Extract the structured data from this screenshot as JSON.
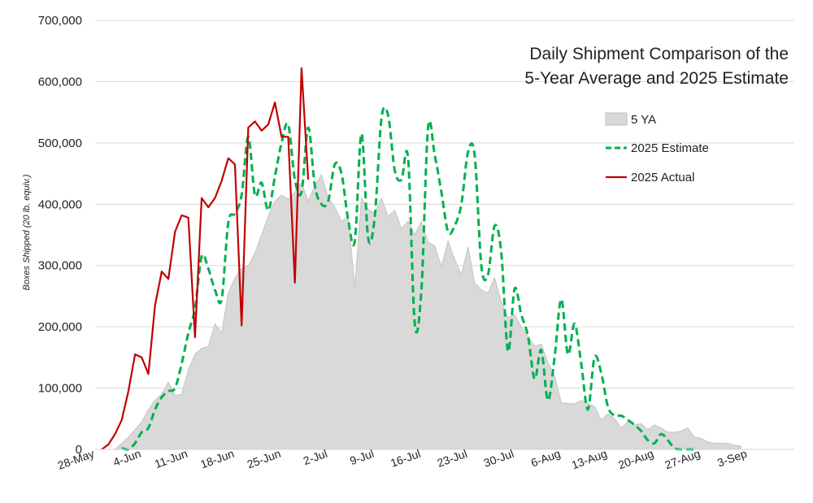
{
  "chart_data": {
    "type": "area",
    "title": [
      "Daily Shipment Comparison of the",
      "5-Year Average and 2025 Estimate"
    ],
    "ylabel": "Boxes Shipped (20 lb. equiv.)",
    "xlabel": "",
    "ylim": [
      0,
      700000
    ],
    "y_ticks": [
      0,
      100000,
      200000,
      300000,
      400000,
      500000,
      600000,
      700000
    ],
    "y_tick_labels": [
      "0",
      "100,000",
      "200,000",
      "300,000",
      "400,000",
      "500,000",
      "600,000",
      "700,000"
    ],
    "x_range": [
      "2025-05-28",
      "2025-09-10"
    ],
    "x_tick_labels": [
      "28-May",
      "4-Jun",
      "11-Jun",
      "18-Jun",
      "25-Jun",
      "2-Jul",
      "9-Jul",
      "16-Jul",
      "23-Jul",
      "30-Jul",
      "6-Aug",
      "13-Aug",
      "20-Aug",
      "27-Aug",
      "3-Sep"
    ],
    "grid": "horizontal",
    "legend_position": "top-right",
    "series": [
      {
        "name": "5 YA",
        "style": "area",
        "color": "#d9d9d9",
        "points": [
          [
            "2025-05-31",
            0
          ],
          [
            "2025-06-01",
            10000
          ],
          [
            "2025-06-02",
            20000
          ],
          [
            "2025-06-03",
            32000
          ],
          [
            "2025-06-04",
            45000
          ],
          [
            "2025-06-05",
            65000
          ],
          [
            "2025-06-06",
            80000
          ],
          [
            "2025-06-07",
            90000
          ],
          [
            "2025-06-08",
            110000
          ],
          [
            "2025-06-09",
            88000
          ],
          [
            "2025-06-10",
            90000
          ],
          [
            "2025-06-11",
            130000
          ],
          [
            "2025-06-12",
            155000
          ],
          [
            "2025-06-13",
            165000
          ],
          [
            "2025-06-14",
            168000
          ],
          [
            "2025-06-15",
            205000
          ],
          [
            "2025-06-16",
            190000
          ],
          [
            "2025-06-17",
            255000
          ],
          [
            "2025-06-18",
            280000
          ],
          [
            "2025-06-19",
            295000
          ],
          [
            "2025-06-20",
            300000
          ],
          [
            "2025-06-21",
            320000
          ],
          [
            "2025-06-22",
            350000
          ],
          [
            "2025-06-23",
            380000
          ],
          [
            "2025-06-24",
            405000
          ],
          [
            "2025-06-25",
            415000
          ],
          [
            "2025-06-26",
            408000
          ],
          [
            "2025-06-27",
            420000
          ],
          [
            "2025-06-28",
            435000
          ],
          [
            "2025-06-29",
            405000
          ],
          [
            "2025-06-30",
            430000
          ],
          [
            "2025-07-01",
            448000
          ],
          [
            "2025-07-02",
            410000
          ],
          [
            "2025-07-03",
            395000
          ],
          [
            "2025-07-04",
            372000
          ],
          [
            "2025-07-05",
            380000
          ],
          [
            "2025-07-06",
            265000
          ],
          [
            "2025-07-07",
            410000
          ],
          [
            "2025-07-08",
            392000
          ],
          [
            "2025-07-09",
            385000
          ],
          [
            "2025-07-10",
            410000
          ],
          [
            "2025-07-11",
            380000
          ],
          [
            "2025-07-12",
            390000
          ],
          [
            "2025-07-13",
            360000
          ],
          [
            "2025-07-14",
            372000
          ],
          [
            "2025-07-15",
            350000
          ],
          [
            "2025-07-16",
            372000
          ],
          [
            "2025-07-17",
            338000
          ],
          [
            "2025-07-18",
            332000
          ],
          [
            "2025-07-19",
            298000
          ],
          [
            "2025-07-20",
            340000
          ],
          [
            "2025-07-21",
            310000
          ],
          [
            "2025-07-22",
            285000
          ],
          [
            "2025-07-23",
            330000
          ],
          [
            "2025-07-24",
            272000
          ],
          [
            "2025-07-25",
            260000
          ],
          [
            "2025-07-26",
            255000
          ],
          [
            "2025-07-27",
            280000
          ],
          [
            "2025-07-28",
            240000
          ],
          [
            "2025-07-29",
            215000
          ],
          [
            "2025-07-30",
            220000
          ],
          [
            "2025-07-31",
            200000
          ],
          [
            "2025-08-01",
            185000
          ],
          [
            "2025-08-02",
            168000
          ],
          [
            "2025-08-03",
            172000
          ],
          [
            "2025-08-04",
            142000
          ],
          [
            "2025-08-05",
            120000
          ],
          [
            "2025-08-06",
            76000
          ],
          [
            "2025-08-07",
            75000
          ],
          [
            "2025-08-08",
            74000
          ],
          [
            "2025-08-09",
            80000
          ],
          [
            "2025-08-10",
            75000
          ],
          [
            "2025-08-11",
            70000
          ],
          [
            "2025-08-12",
            48000
          ],
          [
            "2025-08-13",
            58000
          ],
          [
            "2025-08-14",
            50000
          ],
          [
            "2025-08-15",
            35000
          ],
          [
            "2025-08-16",
            45000
          ],
          [
            "2025-08-17",
            40000
          ],
          [
            "2025-08-18",
            42000
          ],
          [
            "2025-08-19",
            32000
          ],
          [
            "2025-08-20",
            40000
          ],
          [
            "2025-08-21",
            35000
          ],
          [
            "2025-08-22",
            28000
          ],
          [
            "2025-08-23",
            28000
          ],
          [
            "2025-08-24",
            30000
          ],
          [
            "2025-08-25",
            35000
          ],
          [
            "2025-08-26",
            20000
          ],
          [
            "2025-08-27",
            18000
          ],
          [
            "2025-08-28",
            12000
          ],
          [
            "2025-08-29",
            10000
          ],
          [
            "2025-08-30",
            10000
          ],
          [
            "2025-08-31",
            10000
          ],
          [
            "2025-09-01",
            7000
          ],
          [
            "2025-09-02",
            5000
          ]
        ]
      },
      {
        "name": "2025 Estimate",
        "style": "dashed",
        "color": "#00b050",
        "points": [
          [
            "2025-06-01",
            2000
          ],
          [
            "2025-06-02",
            0
          ],
          [
            "2025-06-03",
            10000
          ],
          [
            "2025-06-04",
            28000
          ],
          [
            "2025-06-05",
            35000
          ],
          [
            "2025-06-06",
            65000
          ],
          [
            "2025-06-07",
            85000
          ],
          [
            "2025-06-08",
            95000
          ],
          [
            "2025-06-09",
            100000
          ],
          [
            "2025-06-10",
            140000
          ],
          [
            "2025-06-11",
            190000
          ],
          [
            "2025-06-12",
            230000
          ],
          [
            "2025-06-13",
            315000
          ],
          [
            "2025-06-14",
            295000
          ],
          [
            "2025-06-15",
            260000
          ],
          [
            "2025-06-16",
            245000
          ],
          [
            "2025-06-17",
            370000
          ],
          [
            "2025-06-18",
            385000
          ],
          [
            "2025-06-19",
            415000
          ],
          [
            "2025-06-20",
            510000
          ],
          [
            "2025-06-21",
            415000
          ],
          [
            "2025-06-22",
            435000
          ],
          [
            "2025-06-23",
            390000
          ],
          [
            "2025-06-24",
            445000
          ],
          [
            "2025-06-25",
            500000
          ],
          [
            "2025-06-26",
            530000
          ],
          [
            "2025-06-27",
            440000
          ],
          [
            "2025-06-28",
            420000
          ],
          [
            "2025-06-29",
            525000
          ],
          [
            "2025-06-30",
            430000
          ],
          [
            "2025-07-01",
            400000
          ],
          [
            "2025-07-02",
            405000
          ],
          [
            "2025-07-03",
            465000
          ],
          [
            "2025-07-04",
            450000
          ],
          [
            "2025-07-05",
            375000
          ],
          [
            "2025-07-06",
            340000
          ],
          [
            "2025-07-07",
            515000
          ],
          [
            "2025-07-08",
            345000
          ],
          [
            "2025-07-09",
            380000
          ],
          [
            "2025-07-10",
            540000
          ],
          [
            "2025-07-11",
            545000
          ],
          [
            "2025-07-12",
            455000
          ],
          [
            "2025-07-13",
            440000
          ],
          [
            "2025-07-14",
            475000
          ],
          [
            "2025-07-15",
            205000
          ],
          [
            "2025-07-16",
            260000
          ],
          [
            "2025-07-17",
            525000
          ],
          [
            "2025-07-18",
            480000
          ],
          [
            "2025-07-19",
            420000
          ],
          [
            "2025-07-20",
            355000
          ],
          [
            "2025-07-21",
            365000
          ],
          [
            "2025-07-22",
            400000
          ],
          [
            "2025-07-23",
            485000
          ],
          [
            "2025-07-24",
            480000
          ],
          [
            "2025-07-25",
            300000
          ],
          [
            "2025-07-26",
            285000
          ],
          [
            "2025-07-27",
            365000
          ],
          [
            "2025-07-28",
            320000
          ],
          [
            "2025-07-29",
            160000
          ],
          [
            "2025-07-30",
            262000
          ],
          [
            "2025-07-31",
            220000
          ],
          [
            "2025-08-01",
            185000
          ],
          [
            "2025-08-02",
            115000
          ],
          [
            "2025-08-03",
            162000
          ],
          [
            "2025-08-04",
            80000
          ],
          [
            "2025-08-05",
            150000
          ],
          [
            "2025-08-06",
            245000
          ],
          [
            "2025-08-07",
            155000
          ],
          [
            "2025-08-08",
            205000
          ],
          [
            "2025-08-09",
            140000
          ],
          [
            "2025-08-10",
            65000
          ],
          [
            "2025-08-11",
            150000
          ],
          [
            "2025-08-12",
            125000
          ],
          [
            "2025-08-13",
            70000
          ],
          [
            "2025-08-14",
            55000
          ],
          [
            "2025-08-15",
            55000
          ],
          [
            "2025-08-16",
            48000
          ],
          [
            "2025-08-17",
            40000
          ],
          [
            "2025-08-18",
            30000
          ],
          [
            "2025-08-19",
            15000
          ],
          [
            "2025-08-20",
            10000
          ],
          [
            "2025-08-21",
            25000
          ],
          [
            "2025-08-22",
            15000
          ],
          [
            "2025-08-23",
            2000
          ],
          [
            "2025-08-24",
            0
          ],
          [
            "2025-08-25",
            0
          ],
          [
            "2025-08-26",
            0
          ]
        ]
      },
      {
        "name": "2025 Actual",
        "style": "solid",
        "color": "#c00000",
        "points": [
          [
            "2025-05-29",
            0
          ],
          [
            "2025-05-30",
            8000
          ],
          [
            "2025-05-31",
            25000
          ],
          [
            "2025-06-01",
            48000
          ],
          [
            "2025-06-02",
            95000
          ],
          [
            "2025-06-03",
            155000
          ],
          [
            "2025-06-04",
            150000
          ],
          [
            "2025-06-05",
            123000
          ],
          [
            "2025-06-06",
            235000
          ],
          [
            "2025-06-07",
            290000
          ],
          [
            "2025-06-08",
            278000
          ],
          [
            "2025-06-09",
            355000
          ],
          [
            "2025-06-10",
            382000
          ],
          [
            "2025-06-11",
            378000
          ],
          [
            "2025-06-12",
            183000
          ],
          [
            "2025-06-13",
            410000
          ],
          [
            "2025-06-14",
            395000
          ],
          [
            "2025-06-15",
            410000
          ],
          [
            "2025-06-16",
            438000
          ],
          [
            "2025-06-17",
            475000
          ],
          [
            "2025-06-18",
            465000
          ],
          [
            "2025-06-19",
            202000
          ],
          [
            "2025-06-20",
            525000
          ],
          [
            "2025-06-21",
            535000
          ],
          [
            "2025-06-22",
            520000
          ],
          [
            "2025-06-23",
            530000
          ],
          [
            "2025-06-24",
            566000
          ],
          [
            "2025-06-25",
            510000
          ],
          [
            "2025-06-26",
            510000
          ],
          [
            "2025-06-27",
            272000
          ],
          [
            "2025-06-28",
            622000
          ],
          [
            "2025-06-29",
            440000
          ]
        ]
      }
    ]
  }
}
